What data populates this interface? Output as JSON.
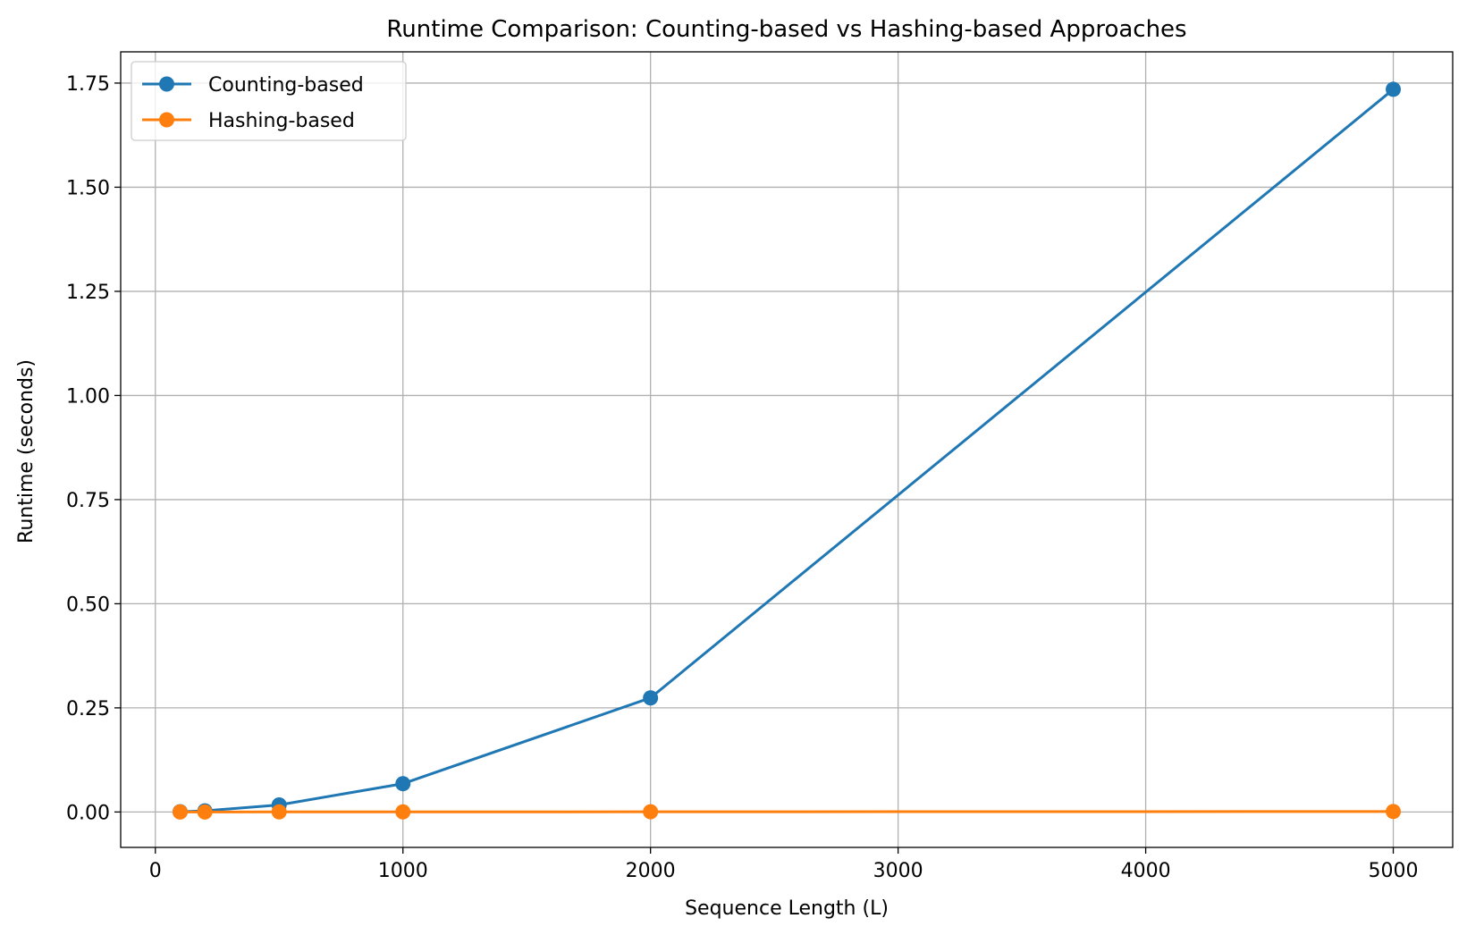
{
  "chart_data": {
    "type": "line",
    "title": "Runtime Comparison: Counting-based vs Hashing-based Approaches",
    "xlabel": "Sequence Length (L)",
    "ylabel": "Runtime (seconds)",
    "xlim": [
      -140,
      5240
    ],
    "ylim": [
      -0.085,
      1.825
    ],
    "xticks": [
      0,
      1000,
      2000,
      3000,
      4000,
      5000
    ],
    "xtick_labels": [
      "0",
      "1000",
      "2000",
      "3000",
      "4000",
      "5000"
    ],
    "yticks": [
      0.0,
      0.25,
      0.5,
      0.75,
      1.0,
      1.25,
      1.5,
      1.75
    ],
    "ytick_labels": [
      "0.00",
      "0.25",
      "0.50",
      "0.75",
      "1.00",
      "1.25",
      "1.50",
      "1.75"
    ],
    "grid": true,
    "legend_position": "upper-left",
    "x": [
      100,
      200,
      500,
      1000,
      2000,
      5000
    ],
    "series": [
      {
        "name": "Counting-based",
        "color": "#1f77b4",
        "values": [
          0.0007,
          0.0028,
          0.017,
          0.068,
          0.274,
          1.735
        ]
      },
      {
        "name": "Hashing-based",
        "color": "#ff7f0e",
        "values": [
          0.0001,
          0.0001,
          0.0002,
          0.0003,
          0.0005,
          0.0012
        ]
      }
    ]
  }
}
